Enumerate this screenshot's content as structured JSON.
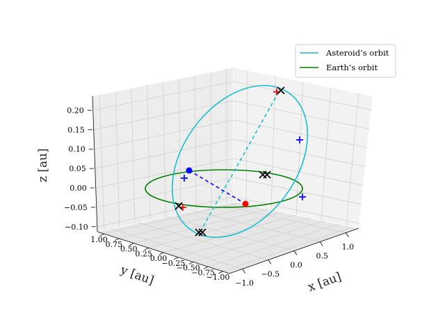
{
  "chart_data": {
    "type": "line3d",
    "legend": {
      "placement": "top-right",
      "entries": [
        {
          "label": "Asteroid’s orbit",
          "color": "#17becf"
        },
        {
          "label": "Earth’s orbit",
          "color": "#008000"
        }
      ]
    },
    "axes": {
      "xlabel": "x [au]",
      "ylabel": "y [au]",
      "zlabel": "z [au]",
      "xlim": [
        -1.2,
        1.2
      ],
      "ylim": [
        -1.0,
        1.0
      ],
      "zlim": [
        -0.1,
        0.22
      ],
      "xticks": [
        "−1.0",
        "−0.5",
        "0.0",
        "0.5",
        "1.0"
      ],
      "yticks": [
        "1.00",
        "0.75",
        "0.50",
        "0.25",
        "0.00",
        "−0.25",
        "−0.50",
        "−0.75",
        "−1.00"
      ],
      "zticks": [
        "0.20",
        "0.15",
        "0.10",
        "0.05",
        "0.00",
        "−0.05",
        "−0.10"
      ],
      "grid": true
    },
    "series": [
      {
        "name": "Asteroid’s orbit",
        "kind": "ellipse",
        "color": "#17becf",
        "description_points": "inclined elliptical orbit"
      },
      {
        "name": "Earth’s orbit",
        "kind": "circle",
        "color": "#008000",
        "radius_au": 1.0
      }
    ],
    "markers": {
      "sun": {
        "color": "#ff0000",
        "x": 0,
        "y": 0,
        "z": 0
      },
      "earth": {
        "color": "#0000ff"
      },
      "node_line_color": "#17becf",
      "earth_line_color": "#0000ff",
      "cross_color": "#000000",
      "plus_colors": [
        "#ff0000",
        "#0000ff"
      ]
    }
  }
}
